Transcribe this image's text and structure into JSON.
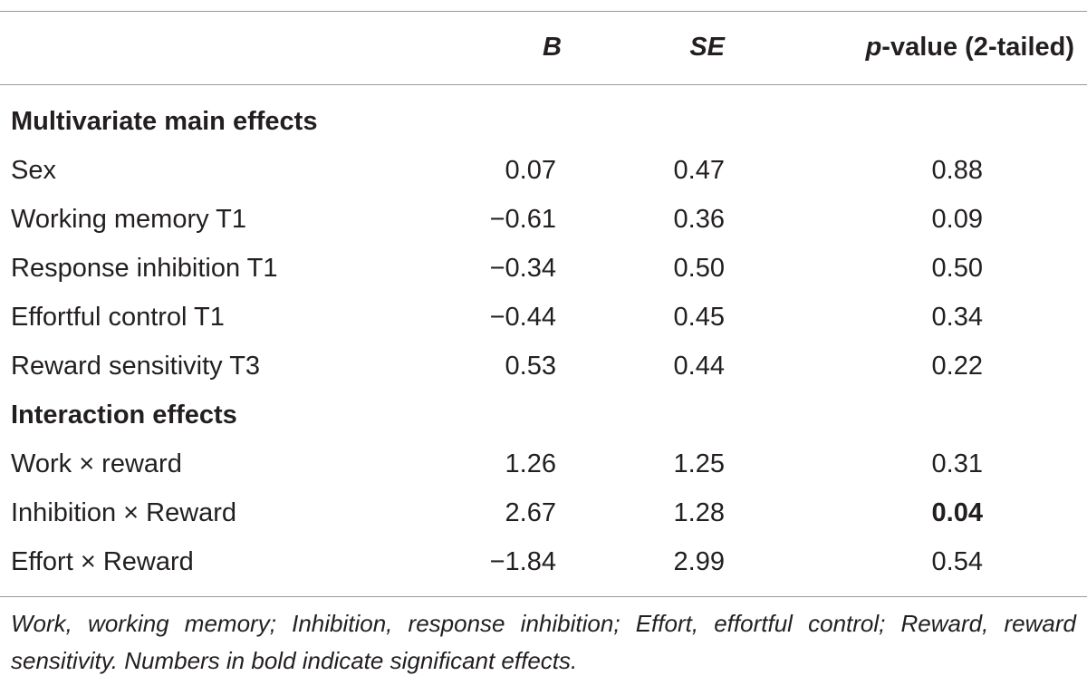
{
  "header": {
    "b_label": "B",
    "se_label": "SE",
    "p_italic": "p",
    "p_rest": "-value (2-tailed)"
  },
  "sections": [
    {
      "title": "Multivariate main effects",
      "rows": [
        {
          "label": "Sex",
          "b": "0.07",
          "se": "0.47",
          "p": "0.88",
          "p_bold": false
        },
        {
          "label": "Working memory T1",
          "b": "−0.61",
          "se": "0.36",
          "p": "0.09",
          "p_bold": false
        },
        {
          "label": "Response inhibition T1",
          "b": "−0.34",
          "se": "0.50",
          "p": "0.50",
          "p_bold": false
        },
        {
          "label": "Effortful control T1",
          "b": "−0.44",
          "se": "0.45",
          "p": "0.34",
          "p_bold": false
        },
        {
          "label": "Reward sensitivity T3",
          "b": "0.53",
          "se": "0.44",
          "p": "0.22",
          "p_bold": false
        }
      ]
    },
    {
      "title": "Interaction effects",
      "rows": [
        {
          "label": "Work × reward",
          "b": "1.26",
          "se": "1.25",
          "p": "0.31",
          "p_bold": false
        },
        {
          "label": "Inhibition × Reward",
          "b": "2.67",
          "se": "1.28",
          "p": "0.04",
          "p_bold": true
        },
        {
          "label": "Effort × Reward",
          "b": "−1.84",
          "se": "2.99",
          "p": "0.54",
          "p_bold": false
        }
      ]
    }
  ],
  "footnote": "Work, working memory; Inhibition, response inhibition; Effort, effortful control; Reward, reward sensitivity. Numbers in bold indicate significant effects."
}
